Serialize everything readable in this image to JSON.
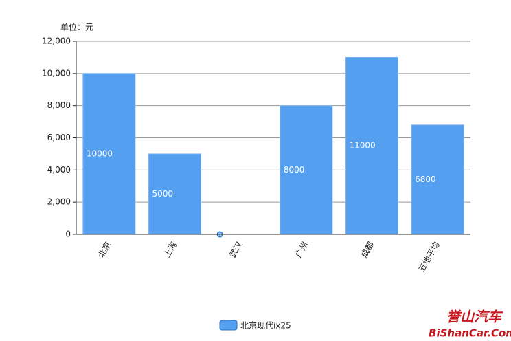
{
  "chart_data": {
    "type": "bar",
    "unit_label": "单位：元",
    "categories": [
      "北京",
      "上海",
      "武汉",
      "广州",
      "成都",
      "五地平均"
    ],
    "series": [
      {
        "name": "北京现代ix25",
        "color": "#559ff0",
        "values": [
          10000,
          5000,
          0,
          8000,
          11000,
          6800
        ]
      }
    ],
    "ylim": [
      0,
      12000
    ],
    "yticks": [
      0,
      {
        "value": 2000,
        "label": "2,000"
      },
      {
        "value": 4000,
        "label": "4,000"
      },
      {
        "value": 6000,
        "label": "6,000"
      },
      {
        "value": 8000,
        "label": "8,000"
      },
      {
        "value": 10000,
        "label": "10,000"
      },
      {
        "value": 12000,
        "label": "12,000"
      }
    ],
    "grid": true,
    "legend": "bottom",
    "watermark": [
      "誉山汽车",
      "BiShanCar.Com"
    ]
  }
}
